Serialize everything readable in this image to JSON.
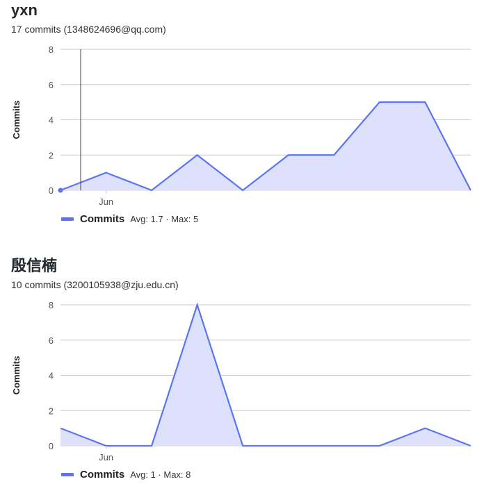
{
  "colors": {
    "series_line": "#5b74f0",
    "series_fill": "#dde1fc",
    "grid": "#c8c8c8",
    "cursor_line": "#444444"
  },
  "contributors": [
    {
      "name": "yxn",
      "meta": "17 commits (1348624696@qq.com)",
      "legend": {
        "label": "Commits",
        "stats": "Avg: 1.7 · Max: 5"
      }
    },
    {
      "name": "殷信楠",
      "meta": "10 commits (3200105938@zju.edu.cn)",
      "legend": {
        "label": "Commits",
        "stats": "Avg: 1 · Max: 8"
      }
    }
  ],
  "chart_data": [
    {
      "type": "area",
      "ylabel": "Commits",
      "ylim": [
        0,
        8
      ],
      "yticks": [
        0,
        2,
        4,
        6,
        8
      ],
      "xtick_labels": [
        {
          "label": "Jun",
          "index": 1
        }
      ],
      "grid": true,
      "legend_position": "bottom-left",
      "hover_point_index": 0,
      "series": [
        {
          "name": "Commits",
          "values": [
            0,
            1,
            0,
            2,
            0,
            2,
            2,
            5,
            5,
            0
          ]
        }
      ]
    },
    {
      "type": "area",
      "ylabel": "Commits",
      "ylim": [
        0,
        8
      ],
      "yticks": [
        0,
        2,
        4,
        6,
        8
      ],
      "xtick_labels": [
        {
          "label": "Jun",
          "index": 1
        }
      ],
      "grid": true,
      "legend_position": "bottom-left",
      "series": [
        {
          "name": "Commits",
          "values": [
            1,
            0,
            0,
            8,
            0,
            0,
            0,
            0,
            1,
            0
          ]
        }
      ]
    }
  ]
}
